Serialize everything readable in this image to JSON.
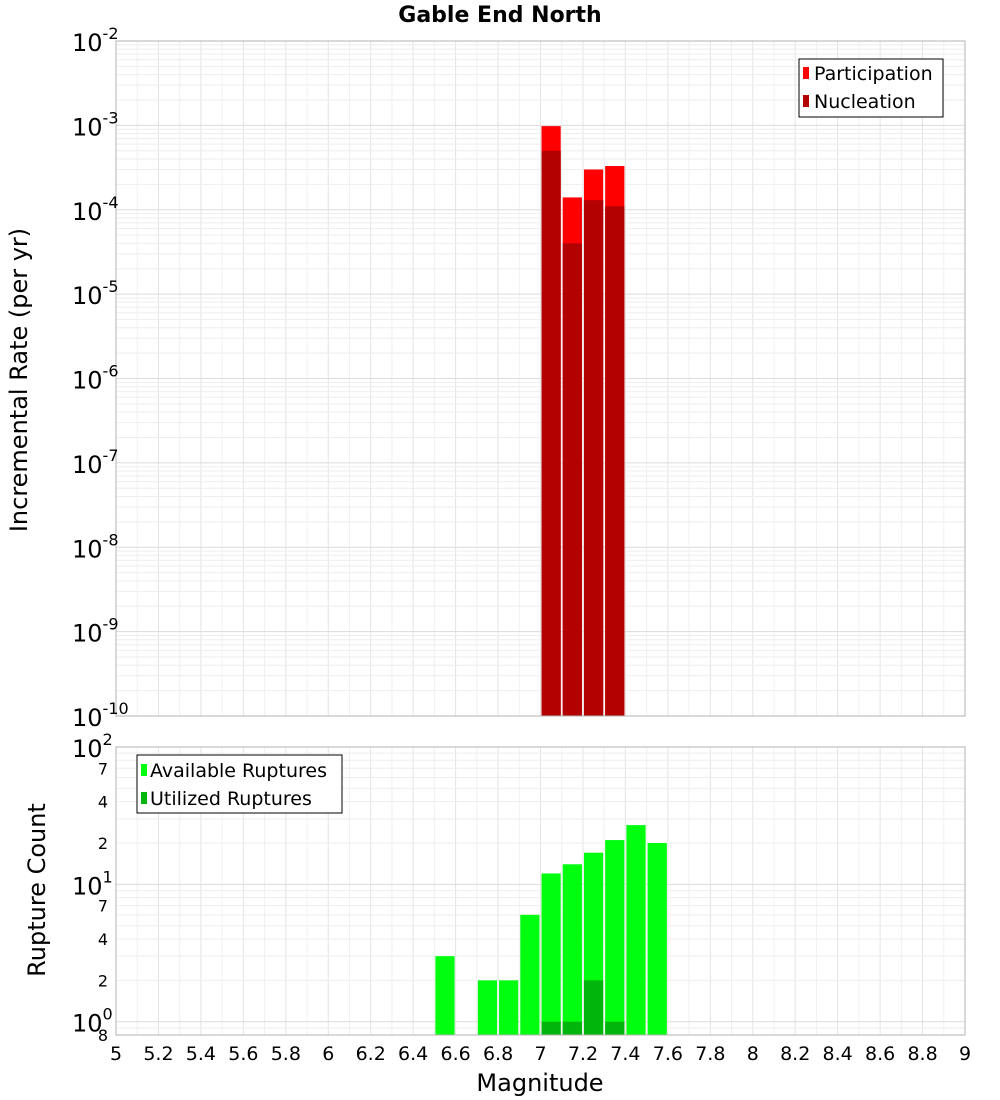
{
  "chart_data": [
    {
      "type": "bar",
      "title": "Gable End North",
      "ylabel": "Incremental Rate (per yr)",
      "yscale": "log",
      "ylim": [
        1e-10,
        0.01
      ],
      "xlim": [
        5,
        9
      ],
      "bar_width": 0.1,
      "legend_position": "top-right",
      "grid": true,
      "y_ticks": [
        {
          "base": "10",
          "exp": "-2",
          "value": 0.01
        },
        {
          "base": "10",
          "exp": "-3",
          "value": 0.001
        },
        {
          "base": "10",
          "exp": "-4",
          "value": 0.0001
        },
        {
          "base": "10",
          "exp": "-5",
          "value": 1e-05
        },
        {
          "base": "10",
          "exp": "-6",
          "value": 1e-06
        },
        {
          "base": "10",
          "exp": "-7",
          "value": 1e-07
        },
        {
          "base": "10",
          "exp": "-8",
          "value": 1e-08
        },
        {
          "base": "10",
          "exp": "-9",
          "value": 1e-09
        },
        {
          "base": "10",
          "exp": "-10",
          "value": 1e-10
        }
      ],
      "series": [
        {
          "name": "Participation",
          "color": "#ff0000",
          "x": [
            7.05,
            7.15,
            7.25,
            7.35
          ],
          "values": [
            0.00098,
            0.00014,
            0.0003,
            0.00033
          ]
        },
        {
          "name": "Nucleation",
          "color": "#b30000",
          "x": [
            7.05,
            7.15,
            7.25,
            7.35
          ],
          "values": [
            0.0005,
            4e-05,
            0.00013,
            0.00011
          ]
        }
      ]
    },
    {
      "type": "bar",
      "xlabel": "Magnitude",
      "ylabel": "Rupture Count",
      "yscale": "log",
      "ylim": [
        0.8,
        100
      ],
      "xlim": [
        5,
        9
      ],
      "bar_width": 0.1,
      "legend_position": "top-left",
      "grid": true,
      "x_ticks": [
        "5",
        "5.2",
        "5.4",
        "5.6",
        "5.8",
        "6",
        "6.2",
        "6.4",
        "6.6",
        "6.8",
        "7",
        "7.2",
        "7.4",
        "7.6",
        "7.8",
        "8",
        "8.2",
        "8.4",
        "8.6",
        "8.8",
        "9"
      ],
      "y_major_ticks": [
        {
          "base": "10",
          "exp": "2",
          "value": 100
        },
        {
          "base": "10",
          "exp": "1",
          "value": 10
        },
        {
          "base": "10",
          "exp": "0",
          "value": 1
        }
      ],
      "y_minor_ticks": [
        {
          "label": "7",
          "value": 70
        },
        {
          "label": "4",
          "value": 40
        },
        {
          "label": "2",
          "value": 20
        },
        {
          "label": "7",
          "value": 7
        },
        {
          "label": "4",
          "value": 4
        },
        {
          "label": "2",
          "value": 2
        },
        {
          "label": "8",
          "value": 0.8
        }
      ],
      "series": [
        {
          "name": "Available Ruptures",
          "color": "#00ff0f",
          "x": [
            6.55,
            6.75,
            6.85,
            6.95,
            7.05,
            7.15,
            7.25,
            7.35,
            7.45,
            7.55
          ],
          "values": [
            3,
            2,
            2,
            6,
            12,
            14,
            17,
            21,
            27,
            20
          ]
        },
        {
          "name": "Utilized Ruptures",
          "color": "#00b50b",
          "x": [
            7.05,
            7.15,
            7.25,
            7.35
          ],
          "values": [
            1,
            1,
            2,
            1
          ]
        }
      ]
    }
  ]
}
